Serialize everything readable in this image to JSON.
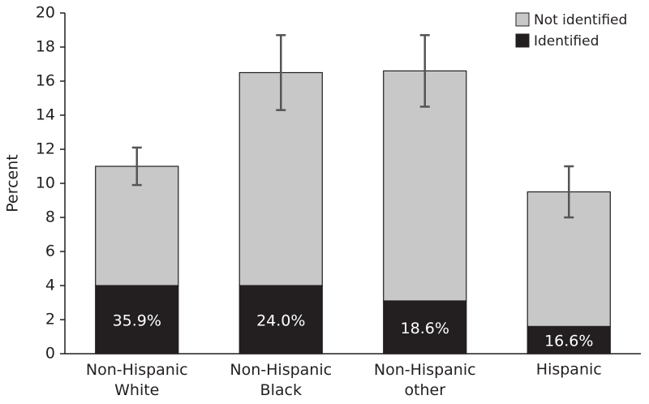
{
  "chart_data": {
    "type": "stacked_bar",
    "y_label": "Percent",
    "categories": [
      "Non-Hispanic White",
      "Non-Hispanic Black",
      "Non-Hispanic other",
      "Hispanic"
    ],
    "series": [
      {
        "name": "Identified",
        "color": "#231f20",
        "values": [
          4.0,
          4.0,
          3.1,
          1.6
        ],
        "data_labels": [
          "35.9%",
          "24.0%",
          "18.6%",
          "16.6%"
        ]
      },
      {
        "name": "Not identified",
        "color": "#c8c8c8",
        "values": [
          7.0,
          12.5,
          13.5,
          7.9
        ],
        "errors": [
          1.1,
          2.2,
          2.1,
          1.5
        ]
      }
    ],
    "ylim": [
      0,
      20
    ],
    "yticks": [
      0,
      2,
      4,
      6,
      8,
      10,
      12,
      14,
      16,
      18,
      20
    ],
    "legend": "top-right",
    "grid": false
  }
}
